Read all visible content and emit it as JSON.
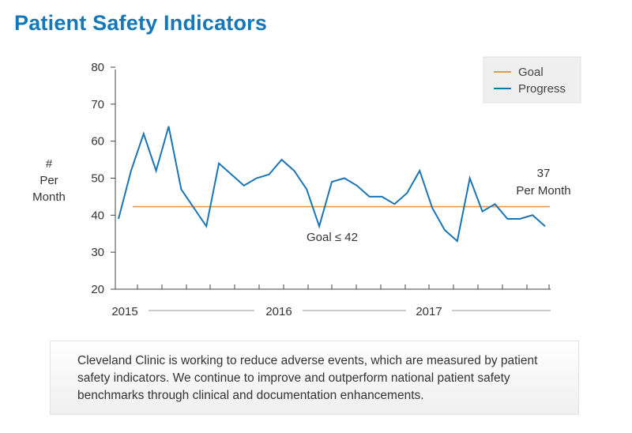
{
  "page": {
    "title": "Patient Safety Indicators",
    "caption": "Cleveland Clinic is working to reduce adverse events, which are measured by patient safety indicators. We continue to improve and outperform national patient safety benchmarks through clinical and documentation enhancements."
  },
  "colors": {
    "title": "#1478b8",
    "progress": "#1a75b6",
    "goal": "#e8964a",
    "axis": "#444444"
  },
  "chart_data": {
    "type": "line",
    "ylabel": [
      "#",
      "Per",
      "Month"
    ],
    "ylim": [
      20,
      80
    ],
    "yticks": [
      20,
      30,
      40,
      50,
      60,
      70,
      80
    ],
    "years": [
      "2015",
      "2016",
      "2017"
    ],
    "grid": false,
    "legend_position": "top-right",
    "series": [
      {
        "name": "Goal",
        "values": [
          42.3,
          42.3
        ],
        "x": [
          1,
          34
        ]
      },
      {
        "name": "Progress",
        "x": [
          0,
          1,
          2,
          3,
          4,
          5,
          6,
          7,
          8,
          9,
          10,
          11,
          12,
          13,
          14,
          15,
          16,
          17,
          18,
          19,
          20,
          21,
          22,
          23,
          24,
          25,
          26,
          27,
          28,
          29,
          30,
          31,
          32,
          33,
          34
        ],
        "values": [
          39,
          52,
          62,
          52,
          64,
          47,
          42,
          37,
          54,
          51,
          48,
          50,
          51,
          55,
          52,
          47,
          37,
          49,
          50,
          48,
          45,
          45,
          43,
          46,
          52,
          42,
          36,
          33,
          50,
          41,
          43,
          39,
          39,
          40,
          37
        ]
      }
    ],
    "annotations": {
      "goal": "Goal ≤ 42",
      "last_value": "37",
      "last_unit": "Per Month"
    }
  }
}
